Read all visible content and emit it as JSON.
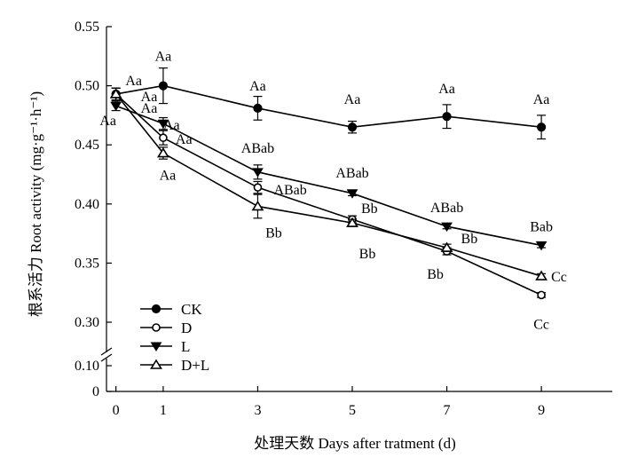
{
  "chart_data": {
    "type": "line",
    "xlabel": "处理天数 Days after tratment (d)",
    "ylabel": "根系活力 Root activity (mg·g⁻¹·h⁻¹)",
    "x": [
      0,
      1,
      3,
      5,
      7,
      9
    ],
    "xlim": [
      -0.2,
      10.5
    ],
    "x_ticks": [
      "0",
      "1",
      "3",
      "5",
      "7",
      "9"
    ],
    "ylim_upper": [
      0.3,
      0.55
    ],
    "y_ticks_upper": [
      "0.30",
      "0.35",
      "0.40",
      "0.45",
      "0.50",
      "0.55"
    ],
    "y_ticks_lower": [
      "0",
      "0.10"
    ],
    "axis_break": true,
    "grid": false,
    "legend_position": "bottom-left",
    "series": [
      {
        "name": "CK",
        "marker": "filled-circle",
        "values": [
          0.493,
          0.5,
          0.481,
          0.465,
          0.474,
          0.465
        ],
        "errors": [
          0.005,
          0.015,
          0.01,
          0.005,
          0.01,
          0.01
        ],
        "labels": [
          "Aa",
          "Aa",
          "Aa",
          "Aa",
          "Aa",
          "Aa"
        ]
      },
      {
        "name": "D",
        "marker": "open-circle",
        "values": [
          0.493,
          0.456,
          0.414,
          0.387,
          0.36,
          0.323
        ],
        "errors": [
          0.005,
          0.006,
          0.005,
          0.003,
          0.003,
          0.002
        ],
        "labels": [
          "Aa",
          "Aa",
          "ABab",
          "Bb",
          "Bb",
          "Cc"
        ]
      },
      {
        "name": "L",
        "marker": "filled-triangle-down",
        "values": [
          0.483,
          0.468,
          0.427,
          0.409,
          0.381,
          0.365
        ],
        "errors": [
          0.004,
          0.005,
          0.006,
          0.002,
          0.002,
          0.002
        ],
        "labels": [
          "Aa",
          "Aa",
          "ABab",
          "ABab",
          "ABab",
          "Bab"
        ]
      },
      {
        "name": "D+L",
        "marker": "open-triangle-up",
        "values": [
          0.493,
          0.443,
          0.398,
          0.384,
          0.363,
          0.339
        ],
        "errors": [
          0.005,
          0.005,
          0.01,
          0.003,
          0.003,
          0.002
        ],
        "labels": [
          "Aa",
          "Aa",
          "Bb",
          "Bb",
          "Bb",
          "Cc"
        ]
      }
    ]
  }
}
